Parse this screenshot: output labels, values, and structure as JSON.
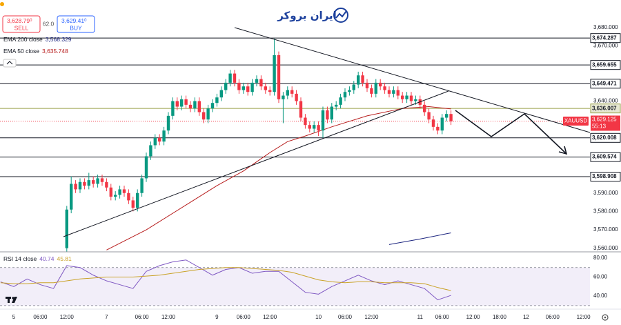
{
  "header": {
    "sell": {
      "price": "3,628.79",
      "price_sup": "0",
      "label": "SELL"
    },
    "spread": "62.0",
    "buy": {
      "price": "3,629.41",
      "price_sup": "0",
      "label": "BUY"
    },
    "logo": "ایران بروکر"
  },
  "chart_data": [
    {
      "type": "candlestick",
      "x": [
        12,
        13,
        14,
        15,
        16,
        17,
        18,
        19,
        20,
        21,
        22,
        23,
        24,
        25,
        26,
        27,
        28,
        29,
        30,
        31,
        32,
        33,
        34,
        35,
        36,
        37,
        38,
        39,
        40,
        41,
        42,
        43,
        44,
        45,
        46,
        47,
        48,
        49,
        50,
        51,
        52,
        53,
        54,
        55,
        56,
        57,
        58,
        59,
        60,
        61,
        62,
        63,
        64,
        65,
        66,
        67,
        68,
        69,
        70,
        71,
        72,
        73,
        74,
        75,
        76,
        77,
        78,
        79,
        80,
        81,
        82,
        83,
        84,
        85,
        86,
        87,
        88,
        89,
        90,
        91,
        92,
        93,
        94,
        95,
        96,
        97,
        98,
        99
      ],
      "open": [
        3560,
        3581,
        3595,
        3592,
        3596,
        3594,
        3597,
        3595,
        3598,
        3596,
        3593,
        3588,
        3589,
        3592,
        3590,
        3586,
        3582,
        3590,
        3598,
        3610,
        3616,
        3620,
        3618,
        3624,
        3632,
        3640,
        3637,
        3641,
        3638,
        3636,
        3640,
        3634,
        3630,
        3636,
        3639,
        3642,
        3646,
        3650,
        3655,
        3650,
        3646,
        3648,
        3645,
        3650,
        3652,
        3648,
        3646,
        3645,
        3665,
        3641,
        3643,
        3646,
        3644,
        3640,
        3631,
        3627,
        3625,
        3627,
        3624,
        3635,
        3630,
        3637,
        3638,
        3642,
        3645,
        3646,
        3649,
        3654,
        3650,
        3647,
        3644,
        3650,
        3648,
        3646,
        3644,
        3646,
        3643,
        3641,
        3643,
        3640,
        3641,
        3638,
        3634,
        3630,
        3626,
        3624,
        3631,
        3633
      ],
      "high": [
        3583,
        3599,
        3597,
        3598,
        3598,
        3601,
        3599,
        3600,
        3600,
        3598,
        3595,
        3591,
        3594,
        3594,
        3592,
        3588,
        3592,
        3600,
        3612,
        3618,
        3622,
        3622,
        3626,
        3634,
        3642,
        3642,
        3643,
        3643,
        3640,
        3642,
        3642,
        3636,
        3638,
        3641,
        3644,
        3648,
        3652,
        3657,
        3657,
        3652,
        3650,
        3650,
        3652,
        3654,
        3654,
        3650,
        3648,
        3674,
        3667,
        3645,
        3648,
        3648,
        3646,
        3642,
        3633,
        3629,
        3629,
        3629,
        3637,
        3637,
        3639,
        3640,
        3644,
        3647,
        3648,
        3651,
        3656,
        3656,
        3652,
        3649,
        3652,
        3652,
        3650,
        3648,
        3648,
        3648,
        3645,
        3645,
        3645,
        3643,
        3643,
        3640,
        3636,
        3632,
        3628,
        3633,
        3635,
        3635
      ],
      "low": [
        3558,
        3579,
        3590,
        3590,
        3592,
        3592,
        3593,
        3593,
        3594,
        3591,
        3586,
        3586,
        3587,
        3588,
        3584,
        3580,
        3580,
        3588,
        3596,
        3608,
        3614,
        3616,
        3616,
        3622,
        3630,
        3635,
        3635,
        3636,
        3634,
        3634,
        3632,
        3628,
        3628,
        3634,
        3637,
        3640,
        3644,
        3648,
        3648,
        3644,
        3644,
        3643,
        3643,
        3648,
        3646,
        3644,
        3643,
        3643,
        3639,
        3628,
        3641,
        3642,
        3638,
        3629,
        3625,
        3623,
        3623,
        3621,
        3620,
        3628,
        3628,
        3635,
        3636,
        3640,
        3643,
        3644,
        3647,
        3648,
        3645,
        3642,
        3642,
        3646,
        3644,
        3642,
        3642,
        3641,
        3639,
        3639,
        3638,
        3638,
        3636,
        3632,
        3628,
        3624,
        3622,
        3622,
        3629,
        3627
      ],
      "close": [
        3581,
        3595,
        3592,
        3596,
        3594,
        3597,
        3595,
        3598,
        3596,
        3593,
        3588,
        3589,
        3592,
        3590,
        3586,
        3582,
        3590,
        3598,
        3610,
        3616,
        3620,
        3618,
        3624,
        3632,
        3640,
        3637,
        3641,
        3638,
        3636,
        3640,
        3634,
        3630,
        3636,
        3639,
        3642,
        3646,
        3650,
        3655,
        3650,
        3646,
        3648,
        3645,
        3650,
        3652,
        3648,
        3646,
        3645,
        3665,
        3641,
        3643,
        3646,
        3644,
        3640,
        3631,
        3627,
        3625,
        3627,
        3624,
        3635,
        3630,
        3637,
        3638,
        3642,
        3645,
        3646,
        3649,
        3654,
        3650,
        3647,
        3644,
        3650,
        3648,
        3646,
        3644,
        3646,
        3643,
        3641,
        3643,
        3640,
        3641,
        3638,
        3634,
        3630,
        3626,
        3624,
        3631,
        3633,
        3629
      ],
      "up_color": "#089981",
      "down_color": "#f23645",
      "xlim": [
        -3.125,
        130.47
      ],
      "ylim": [
        3558,
        3695
      ],
      "yticks": [
        {
          "value": 3680,
          "label": "3,680.000"
        },
        {
          "value": 3670,
          "label": "3,670.000"
        },
        {
          "value": 3640,
          "label": "3,640.000"
        },
        {
          "value": 3590,
          "label": "3,590.000"
        },
        {
          "value": 3580,
          "label": "3,580.000"
        },
        {
          "value": 3570,
          "label": "3,570.000"
        },
        {
          "value": 3560,
          "label": "3,560.000"
        }
      ],
      "xticks": [
        {
          "value": 0,
          "label": "5"
        },
        {
          "value": 6,
          "label": "06:00"
        },
        {
          "value": 12,
          "label": "12:00"
        },
        {
          "value": 21,
          "label": "7"
        },
        {
          "value": 29,
          "label": "06:00"
        },
        {
          "value": 35,
          "label": "12:00"
        },
        {
          "value": 46,
          "label": "9"
        },
        {
          "value": 52,
          "label": "06:00"
        },
        {
          "value": 58,
          "label": "12:00"
        },
        {
          "value": 69,
          "label": "10"
        },
        {
          "value": 75,
          "label": "06:00"
        },
        {
          "value": 81,
          "label": "12:00"
        },
        {
          "value": 92,
          "label": "11"
        },
        {
          "value": 97,
          "label": "06:00"
        },
        {
          "value": 104,
          "label": "12:00"
        },
        {
          "value": 110,
          "label": "18:00"
        },
        {
          "value": 116,
          "label": "12"
        },
        {
          "value": 122,
          "label": "06:00"
        },
        {
          "value": 129,
          "label": "12:00"
        }
      ],
      "series": [
        {
          "name": "EMA 200 close",
          "color": "#1a237e",
          "x": [
            85,
            92,
            99
          ],
          "values": [
            3562,
            3565,
            3568.329
          ],
          "legend_value": "3,568.329"
        },
        {
          "name": "EMA 50 close",
          "color": "#b71c1c",
          "x": [
            21,
            30,
            40,
            46,
            52,
            58,
            62,
            66,
            72,
            80,
            88,
            94,
            99
          ],
          "values": [
            3559,
            3570,
            3585,
            3594,
            3602,
            3612,
            3618,
            3621,
            3626,
            3632,
            3636,
            3637,
            3635.748
          ],
          "legend_value": "3,635.748"
        }
      ],
      "levels": [
        {
          "value": 3674.287,
          "label": "3,674.287",
          "color": "#131722"
        },
        {
          "value": 3659.655,
          "label": "3,659.655",
          "color": "#131722"
        },
        {
          "value": 3649.471,
          "label": "3,649.471",
          "color": "#131722"
        },
        {
          "value": 3636.007,
          "label": "3,636.007",
          "color": "#9aa14a"
        },
        {
          "value": 3620.008,
          "label": "3,620.008",
          "color": "#131722"
        },
        {
          "value": 3609.574,
          "label": "3,609.574",
          "color": "#131722"
        },
        {
          "value": 3598.908,
          "label": "3,598.908",
          "color": "#131722"
        }
      ],
      "symbol": "XAUUSD",
      "last_price": {
        "value": 3629.125,
        "label": "3,629.125",
        "color": "#f23645"
      },
      "countdown": "55:13"
    },
    {
      "type": "line",
      "x": [
        -3,
        0,
        3,
        6,
        9,
        12,
        15,
        18,
        21,
        24,
        27,
        30,
        33,
        36,
        39,
        42,
        45,
        48,
        51,
        54,
        57,
        60,
        63,
        66,
        69,
        72,
        75,
        78,
        81,
        84,
        87,
        90,
        93,
        96,
        99
      ],
      "xlim": [
        -3.125,
        130.47
      ],
      "ylim": [
        27,
        86.5
      ],
      "yticks": [
        {
          "value": 80,
          "label": "80.00"
        },
        {
          "value": 60,
          "label": "60.00"
        },
        {
          "value": 40,
          "label": "40.00"
        }
      ],
      "band": [
        30,
        70
      ],
      "series": [
        {
          "name": "RSI 14 close",
          "color": "#7e57c2",
          "values": [
            55,
            50,
            58,
            52,
            48,
            72,
            70,
            62,
            56,
            52,
            48,
            66,
            72,
            76,
            78,
            70,
            62,
            68,
            70,
            64,
            66,
            66,
            55,
            44,
            42,
            50,
            56,
            62,
            56,
            52,
            56,
            52,
            48,
            36,
            40.74
          ],
          "legend_value": "40.74"
        },
        {
          "color": "#c9a227",
          "values": [
            54,
            53,
            53,
            54,
            54,
            56,
            58,
            59,
            60,
            60,
            60,
            61,
            62,
            64,
            66,
            68,
            69,
            70,
            70,
            69,
            68,
            67,
            65,
            61,
            57,
            55,
            54,
            55,
            55,
            54,
            54,
            54,
            53,
            49,
            45.81
          ],
          "legend_value": "45.81"
        }
      ]
    }
  ]
}
